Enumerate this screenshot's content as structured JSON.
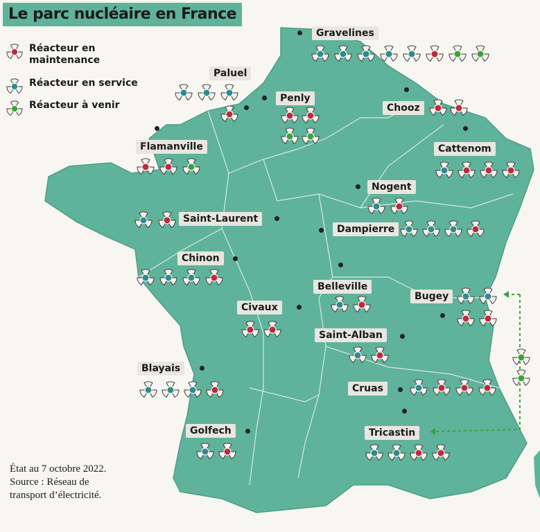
{
  "title": "Le parc nucléaire en France",
  "legend": [
    {
      "label": "Réacteur en maintenance",
      "status": "maintenance"
    },
    {
      "label": "Réacteur en service",
      "status": "service"
    },
    {
      "label": "Réacteur à venir",
      "status": "avenir"
    }
  ],
  "colors": {
    "maintenance": "#c0283d",
    "service": "#2f8a8f",
    "avenir": "#3aa23c",
    "land": "#5fb39a",
    "sea": "#f7f6f1"
  },
  "sites": [
    {
      "name": "Gravelines",
      "reactors": [
        "service",
        "service",
        "service",
        "service",
        "service",
        "maintenance",
        "avenir",
        "avenir"
      ]
    },
    {
      "name": "Paluel",
      "reactors": [
        "service",
        "service",
        "service",
        "maintenance"
      ]
    },
    {
      "name": "Penly",
      "reactors": [
        "maintenance",
        "maintenance",
        "avenir",
        "avenir"
      ]
    },
    {
      "name": "Chooz",
      "reactors": [
        "maintenance",
        "maintenance"
      ]
    },
    {
      "name": "Flamanville",
      "reactors": [
        "maintenance",
        "maintenance",
        "avenir"
      ]
    },
    {
      "name": "Cattenom",
      "reactors": [
        "service",
        "maintenance",
        "maintenance",
        "maintenance"
      ]
    },
    {
      "name": "Nogent",
      "reactors": [
        "service",
        "maintenance"
      ]
    },
    {
      "name": "Saint-Laurent",
      "reactors": [
        "service",
        "maintenance"
      ]
    },
    {
      "name": "Dampierre",
      "reactors": [
        "service",
        "service",
        "service",
        "maintenance"
      ]
    },
    {
      "name": "Chinon",
      "reactors": [
        "service",
        "service",
        "service",
        "maintenance"
      ]
    },
    {
      "name": "Belleville",
      "reactors": [
        "service",
        "maintenance"
      ]
    },
    {
      "name": "Bugey",
      "reactors": [
        "service",
        "service",
        "maintenance",
        "maintenance"
      ]
    },
    {
      "name": "Civaux",
      "reactors": [
        "maintenance",
        "maintenance"
      ]
    },
    {
      "name": "Saint-Alban",
      "reactors": [
        "service",
        "maintenance"
      ]
    },
    {
      "name": "Blayais",
      "reactors": [
        "service",
        "service",
        "service",
        "maintenance"
      ]
    },
    {
      "name": "Cruas",
      "reactors": [
        "service",
        "maintenance",
        "maintenance",
        "maintenance"
      ]
    },
    {
      "name": "Golfech",
      "reactors": [
        "service",
        "maintenance"
      ]
    },
    {
      "name": "Tricastin",
      "reactors": [
        "service",
        "service",
        "maintenance",
        "maintenance"
      ]
    }
  ],
  "future_east_reactors": [
    "avenir",
    "avenir"
  ],
  "note_lines": [
    "État au 7 octobre 2022.",
    "Source : Réseau de",
    "transport d’électricité."
  ]
}
